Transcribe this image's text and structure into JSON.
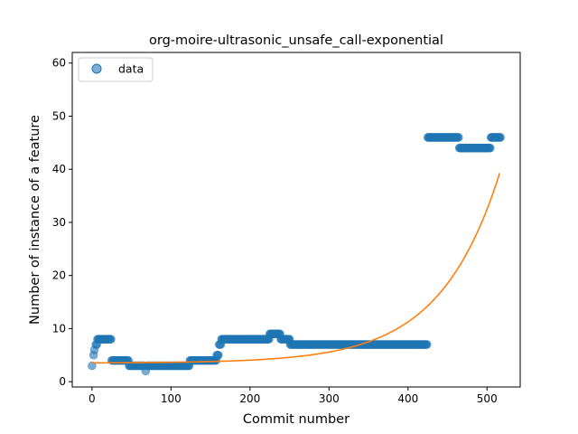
{
  "chart_data": {
    "type": "scatter",
    "title": "org-moire-ultrasonic_unsafe_call-exponential",
    "xlabel": "Commit number",
    "ylabel": "Number of instance of a feature",
    "xlim": [
      -25,
      542
    ],
    "ylim": [
      -1,
      62
    ],
    "xticks": [
      0,
      100,
      200,
      300,
      400,
      500
    ],
    "yticks": [
      0,
      10,
      20,
      30,
      40,
      50,
      60
    ],
    "grid": false,
    "legend": {
      "placement": "top-left",
      "entries": [
        "data"
      ]
    },
    "colors": {
      "data": "#1f77b4",
      "fit": "#ff7f0e"
    },
    "series": [
      {
        "name": "data",
        "kind": "scatter",
        "segments": [
          {
            "x_start": 0,
            "x_end": 0,
            "y": 3
          },
          {
            "x_start": 2,
            "x_end": 2,
            "y": 5
          },
          {
            "x_start": 3,
            "x_end": 3,
            "y": 6
          },
          {
            "x_start": 5,
            "x_end": 6,
            "y": 7
          },
          {
            "x_start": 7,
            "x_end": 24,
            "y": 8
          },
          {
            "x_start": 25,
            "x_end": 46,
            "y": 4
          },
          {
            "x_start": 47,
            "x_end": 66,
            "y": 3
          },
          {
            "x_start": 68,
            "x_end": 68,
            "y": 2
          },
          {
            "x_start": 70,
            "x_end": 123,
            "y": 3
          },
          {
            "x_start": 124,
            "x_end": 157,
            "y": 4
          },
          {
            "x_start": 158,
            "x_end": 160,
            "y": 5
          },
          {
            "x_start": 161,
            "x_end": 163,
            "y": 7
          },
          {
            "x_start": 164,
            "x_end": 224,
            "y": 8
          },
          {
            "x_start": 225,
            "x_end": 238,
            "y": 9
          },
          {
            "x_start": 239,
            "x_end": 250,
            "y": 8
          },
          {
            "x_start": 251,
            "x_end": 424,
            "y": 7
          },
          {
            "x_start": 425,
            "x_end": 464,
            "y": 46
          },
          {
            "x_start": 465,
            "x_end": 504,
            "y": 44
          },
          {
            "x_start": 505,
            "x_end": 517,
            "y": 46
          }
        ]
      },
      {
        "kind": "line",
        "function": "exponential",
        "a": 0.04,
        "b": 0.01317,
        "c": 3.5,
        "x_start": 0,
        "x_end": 516
      }
    ]
  }
}
